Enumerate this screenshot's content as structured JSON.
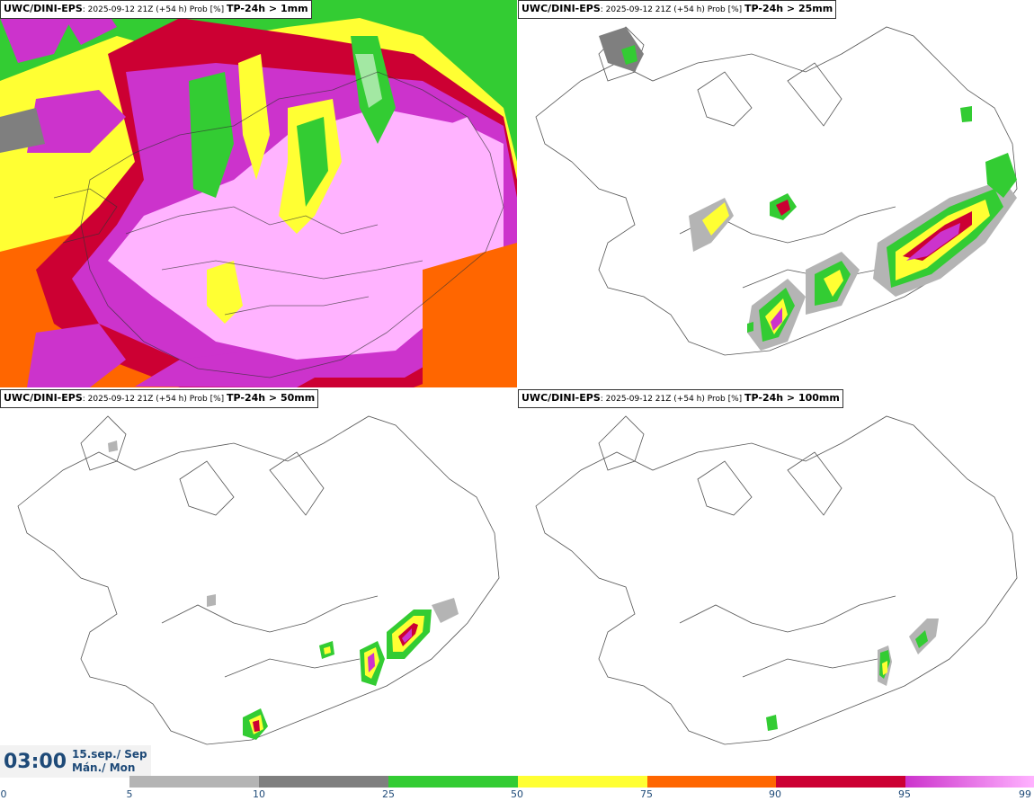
{
  "panels": [
    {
      "model": "UWC/DINI-EPS",
      "run": ": 2025-09-12 21Z (+54 h) Prob [%] ",
      "param": "TP-24h > 1mm"
    },
    {
      "model": "UWC/DINI-EPS",
      "run": ": 2025-09-12 21Z (+54 h) Prob [%] ",
      "param": "TP-24h > 25mm"
    },
    {
      "model": "UWC/DINI-EPS",
      "run": ": 2025-09-12 21Z (+54 h) Prob [%] ",
      "param": "TP-24h > 50mm"
    },
    {
      "model": "UWC/DINI-EPS",
      "run": ": 2025-09-12 21Z (+54 h) Prob [%] ",
      "param": "TP-24h > 100mm"
    }
  ],
  "valid_time": {
    "time": "03:00",
    "date_line1": "15.sep./ Sep",
    "date_line2": "Mán./ Mon"
  },
  "legend": {
    "ticks": [
      "0",
      "5",
      "10",
      "25",
      "50",
      "75",
      "90",
      "95",
      "99"
    ],
    "colors": [
      "#b4b4b4",
      "#7f7f7f",
      "#33cc33",
      "#ffff33",
      "#ff6600",
      "#cc0033",
      "#cc33cc",
      "#ffb3ff"
    ]
  },
  "colors": {
    "light_gray": "#b4b4b4",
    "gray": "#7f7f7f",
    "green": "#33cc33",
    "yellow": "#ffff33",
    "orange": "#ff6600",
    "red": "#cc0033",
    "magenta": "#cc33cc",
    "pink": "#ffb3ff"
  }
}
